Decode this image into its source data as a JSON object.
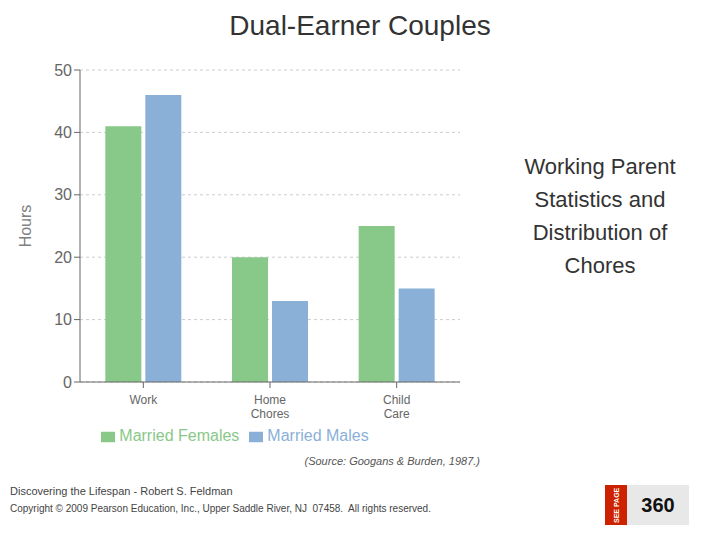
{
  "chart_data": {
    "type": "bar",
    "title": "Dual-Earner Couples",
    "subtitle": "Working Parent\nStatistics and\nDistribution of\nChores",
    "categories": [
      "Work",
      "Home\nChores",
      "Child\nCare"
    ],
    "series": [
      {
        "name": "Married Females",
        "color": "#88c888",
        "values": [
          41,
          20,
          25
        ]
      },
      {
        "name": "Married Males",
        "color": "#8ab0d8",
        "values": [
          46,
          13,
          15
        ]
      }
    ],
    "ylabel": "Hours",
    "ylim": [
      0,
      50
    ],
    "yticks": [
      0,
      10,
      20,
      30,
      40,
      50
    ],
    "grid": true,
    "legend": "bottom",
    "annotations": [
      "(Source: Googans & Burden, 1987.)",
      "Discovering the Lifespan - Robert S. Feldman",
      "Copyright © 2009 Pearson Education, Inc., Upper Saddle River, NJ  07458.  All rights reserved.",
      "SEE PAGE",
      "360"
    ]
  }
}
